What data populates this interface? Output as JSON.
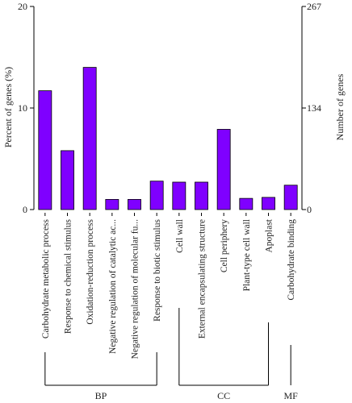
{
  "chart_data": {
    "type": "bar",
    "ylabel": "Percent of genes (%)",
    "y2label": "Number of genes",
    "ylim": [
      0,
      20
    ],
    "yticks": [
      "0",
      "10",
      "20"
    ],
    "y2ticks": [
      "0",
      "134",
      "267"
    ],
    "grid": false,
    "bar_color": "#7f00ff",
    "categories": [
      "Carbohydrate metabolic process",
      "Response to chemical stimulus",
      "Oxidation-reduction process",
      "Negative regulation of catalytic ac...",
      "Negative regulation of molecular fu...",
      "Response to biotic stimulus",
      "Cell wall",
      "External encapsulating structure",
      "Cell periphery",
      "Plant-type cell wall",
      "Apoplast",
      "Carbohydrate binding"
    ],
    "values": [
      11.7,
      5.8,
      14.0,
      1.0,
      1.0,
      2.8,
      2.7,
      2.7,
      7.9,
      1.1,
      1.2,
      2.4
    ],
    "groups": [
      {
        "name": "BP",
        "start": 0,
        "end": 5
      },
      {
        "name": "CC",
        "start": 6,
        "end": 10
      },
      {
        "name": "MF",
        "start": 11,
        "end": 11
      }
    ]
  }
}
